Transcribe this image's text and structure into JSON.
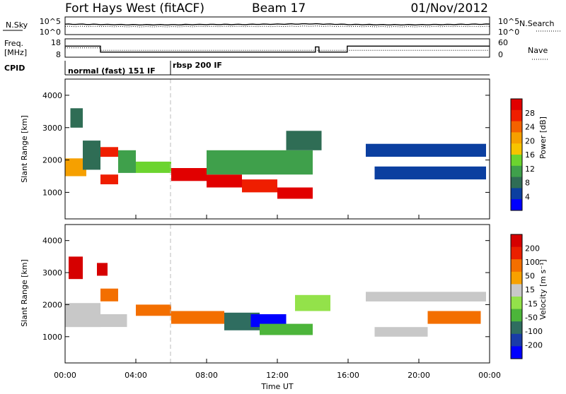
{
  "header": {
    "title": "Fort Hays West (fitACF)",
    "beam": "Beam 17",
    "date": "01/Nov/2012"
  },
  "noise_panel": {
    "left_label": "N.Sky",
    "right_label": "N.Search",
    "ticks_left": [
      "10^5",
      "10^0"
    ],
    "ticks_right": [
      "10^5",
      "10^0"
    ]
  },
  "freq_panel": {
    "left_label_line1": "Freq.",
    "left_label_line2": "[MHz]",
    "right_label": "Nave",
    "ticks_left": [
      "18",
      "8"
    ],
    "ticks_right": [
      "60",
      "0"
    ]
  },
  "cpid_panel": {
    "label": "CPID",
    "modes": [
      "normal (fast) 151 IF",
      "rbsp 200 IF"
    ]
  },
  "colors": {
    "palette": [
      "#0000ff",
      "#0b3fa0",
      "#2f6d55",
      "#3fa04b",
      "#6cd42f",
      "#f7c400",
      "#f6a000",
      "#f46200",
      "#ef1e00",
      "#e10000"
    ],
    "velocity": [
      "#0000ff",
      "#1a3ca8",
      "#2f6d60",
      "#4cb53a",
      "#93e24a",
      "#c8c8c8",
      "#f7a100",
      "#f36f00",
      "#ea2000",
      "#d60000"
    ],
    "ground_scatter": "#c8c8c8"
  },
  "chart_data": [
    {
      "type": "line",
      "name": "noise",
      "x": [
        0,
        2,
        4,
        6,
        8,
        10,
        12,
        14,
        16,
        18,
        20,
        22,
        24
      ],
      "series": [
        {
          "name": "N.Sky",
          "values": [
            3.2,
            3.1,
            3.0,
            3.0,
            3.1,
            3.1,
            3.2,
            3.3,
            3.1,
            3.0,
            3.0,
            3.1,
            3.2
          ]
        },
        {
          "name": "N.Search",
          "values": [
            2.4,
            2.4,
            2.3,
            2.3,
            2.4,
            2.4,
            2.4,
            2.5,
            2.4,
            2.3,
            2.3,
            2.4,
            2.4
          ]
        }
      ],
      "ylim": [
        0,
        5
      ],
      "xlim": [
        0,
        24
      ]
    },
    {
      "type": "line",
      "name": "frequency",
      "series": [
        {
          "name": "Freq.",
          "x": [
            0,
            2,
            2,
            14.15,
            14.15,
            14.35,
            14.35,
            15.95,
            15.95,
            24
          ],
          "values": [
            14.5,
            14.5,
            10.5,
            10.5,
            14.0,
            14.0,
            10.5,
            10.5,
            14.5,
            14.5
          ]
        },
        {
          "name": "Nave",
          "x": [
            0,
            2,
            2,
            24
          ],
          "values": [
            32,
            32,
            22,
            22
          ]
        }
      ],
      "ylim": [
        8,
        18
      ],
      "xlim": [
        0,
        24
      ]
    },
    {
      "type": "heatmap",
      "name": "power",
      "title": "",
      "ylabel": "Slant Range [km]",
      "cbar_label": "Power [dB]",
      "cbar_ticks": [
        "28",
        "24",
        "20",
        "16",
        "12",
        "8",
        "4"
      ],
      "y_ticks": [
        "4000",
        "3000",
        "2000",
        "1000"
      ],
      "ylim": [
        180,
        4500
      ],
      "xlim": [
        0,
        24
      ],
      "regions": [
        {
          "x0": 0.0,
          "x1": 1.2,
          "y0": 1500,
          "y1": 2050,
          "v": 6
        },
        {
          "x0": 0.3,
          "x1": 1.0,
          "y0": 3000,
          "y1": 3600,
          "v": 2
        },
        {
          "x0": 1.0,
          "x1": 2.0,
          "y0": 1700,
          "y1": 2600,
          "v": 2
        },
        {
          "x0": 2.0,
          "x1": 3.0,
          "y0": 2100,
          "y1": 2400,
          "v": 8
        },
        {
          "x0": 2.0,
          "x1": 3.0,
          "y0": 1250,
          "y1": 1550,
          "v": 8
        },
        {
          "x0": 3.0,
          "x1": 4.0,
          "y0": 1600,
          "y1": 2300,
          "v": 3
        },
        {
          "x0": 4.0,
          "x1": 6.0,
          "y0": 1600,
          "y1": 1950,
          "v": 4
        },
        {
          "x0": 6.0,
          "x1": 8.0,
          "y0": 1350,
          "y1": 1750,
          "v": 9
        },
        {
          "x0": 8.0,
          "x1": 10.0,
          "y0": 1150,
          "y1": 1550,
          "v": 9
        },
        {
          "x0": 10.0,
          "x1": 12.0,
          "y0": 1000,
          "y1": 1400,
          "v": 8
        },
        {
          "x0": 12.0,
          "x1": 14.0,
          "y0": 800,
          "y1": 1150,
          "v": 9
        },
        {
          "x0": 8.0,
          "x1": 14.0,
          "y0": 1550,
          "y1": 2300,
          "v": 3
        },
        {
          "x0": 12.5,
          "x1": 14.5,
          "y0": 2300,
          "y1": 2900,
          "v": 2
        },
        {
          "x0": 17.0,
          "x1": 23.8,
          "y0": 2100,
          "y1": 2500,
          "v": 1
        },
        {
          "x0": 17.5,
          "x1": 23.8,
          "y0": 1400,
          "y1": 1800,
          "v": 1
        }
      ]
    },
    {
      "type": "heatmap",
      "name": "velocity",
      "title": "",
      "ylabel": "Slant Range [km]",
      "cbar_label": "Velocity [m s⁻¹]",
      "cbar_ticks": [
        "200",
        "100",
        "50",
        "15",
        "-15",
        "-50",
        "-100",
        "-200"
      ],
      "y_ticks": [
        "4000",
        "3000",
        "2000",
        "1000"
      ],
      "ylim": [
        180,
        4500
      ],
      "xlim": [
        0,
        24
      ],
      "regions": [
        {
          "x0": 0.0,
          "x1": 2.0,
          "y0": 1300,
          "y1": 2050,
          "v": 5
        },
        {
          "x0": 0.2,
          "x1": 1.0,
          "y0": 2800,
          "y1": 3500,
          "v": 9
        },
        {
          "x0": 1.8,
          "x1": 2.4,
          "y0": 2900,
          "y1": 3300,
          "v": 9
        },
        {
          "x0": 2.0,
          "x1": 3.0,
          "y0": 2100,
          "y1": 2500,
          "v": 7
        },
        {
          "x0": 2.0,
          "x1": 3.5,
          "y0": 1300,
          "y1": 1700,
          "v": 5
        },
        {
          "x0": 4.0,
          "x1": 6.0,
          "y0": 1650,
          "y1": 2000,
          "v": 7
        },
        {
          "x0": 6.0,
          "x1": 9.0,
          "y0": 1400,
          "y1": 1800,
          "v": 7
        },
        {
          "x0": 9.0,
          "x1": 11.0,
          "y0": 1200,
          "y1": 1750,
          "v": 2
        },
        {
          "x0": 10.5,
          "x1": 12.5,
          "y0": 1300,
          "y1": 1700,
          "v": 0
        },
        {
          "x0": 11.0,
          "x1": 14.0,
          "y0": 1050,
          "y1": 1400,
          "v": 3
        },
        {
          "x0": 13.0,
          "x1": 15.0,
          "y0": 1800,
          "y1": 2300,
          "v": 4
        },
        {
          "x0": 17.0,
          "x1": 23.8,
          "y0": 2100,
          "y1": 2400,
          "v": 5
        },
        {
          "x0": 20.5,
          "x1": 23.5,
          "y0": 1400,
          "y1": 1800,
          "v": 7
        },
        {
          "x0": 17.5,
          "x1": 20.5,
          "y0": 1000,
          "y1": 1300,
          "v": 5
        }
      ]
    }
  ],
  "x_axis": {
    "ticks": [
      "00:00",
      "04:00",
      "08:00",
      "12:00",
      "16:00",
      "20:00",
      "00:00"
    ],
    "label": "Time UT"
  }
}
